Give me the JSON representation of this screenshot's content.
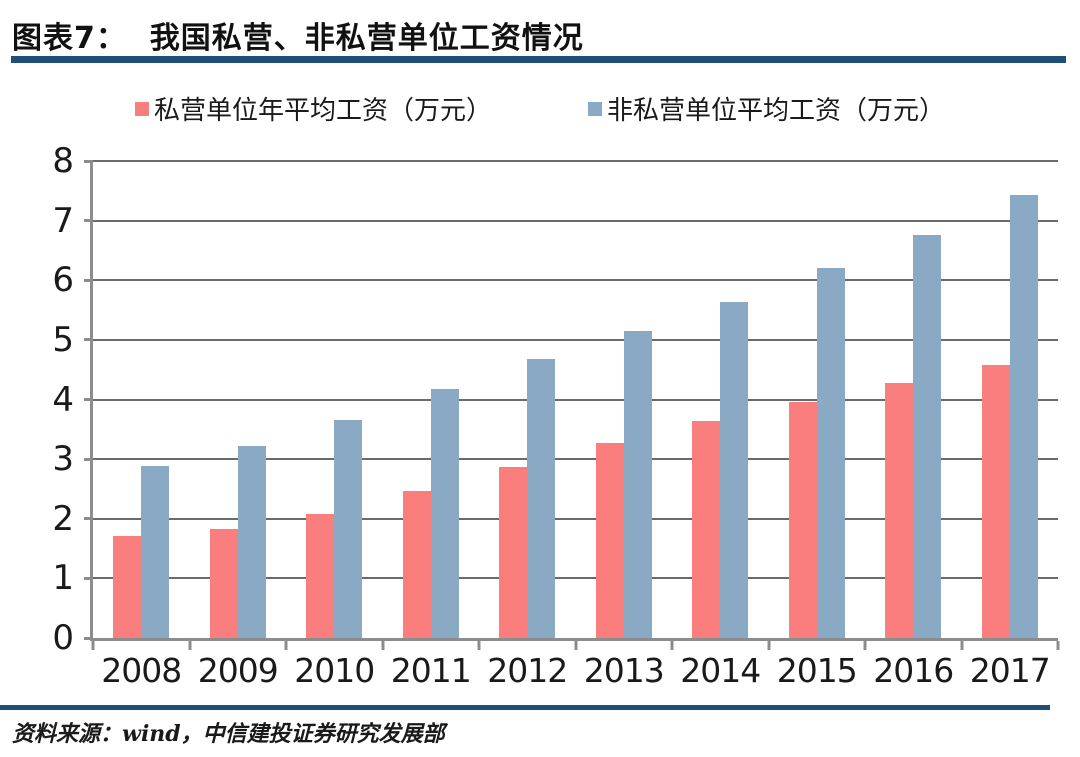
{
  "header": {
    "title": "图表7：  我国私营、非私营单位工资情况"
  },
  "legend": {
    "items": [
      {
        "label": "私营单位年平均工资（万元）"
      },
      {
        "label": "非私营单位平均工资（万元）"
      }
    ]
  },
  "chart_data": {
    "type": "bar",
    "title": "我国私营、非私营单位工资情况",
    "categories": [
      "2008",
      "2009",
      "2010",
      "2011",
      "2012",
      "2013",
      "2014",
      "2015",
      "2016",
      "2017"
    ],
    "series": [
      {
        "id": "private",
        "name": "私营单位年平均工资（万元）",
        "color": "#FA7E7E",
        "values": [
          1.71,
          1.82,
          2.08,
          2.46,
          2.87,
          3.27,
          3.64,
          3.96,
          4.28,
          4.58
        ]
      },
      {
        "id": "nonprivate",
        "name": "非私营单位平均工资（万元）",
        "color": "#8AA9C4",
        "values": [
          2.89,
          3.22,
          3.65,
          4.18,
          4.68,
          5.15,
          5.64,
          6.2,
          6.76,
          7.43
        ]
      }
    ],
    "xlabel": "",
    "ylabel": "",
    "ylim": [
      0,
      8
    ],
    "yticks": [
      0,
      1,
      2,
      3,
      4,
      5,
      6,
      7,
      8
    ],
    "grid": true,
    "legend_position": "top"
  },
  "footer": {
    "source": "资料来源：wind，中信建投证券研究发展部"
  },
  "colors": {
    "accent_rule": "#1F4E79",
    "axis": "#8C8C8C",
    "gridline": "#6A6A6A"
  }
}
